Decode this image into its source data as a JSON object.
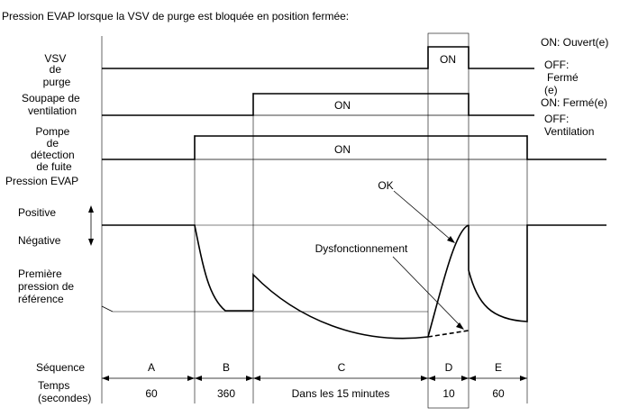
{
  "title": "Pression EVAP lorsque la VSV de purge est bloquée en position fermée:",
  "rows": {
    "vsv": {
      "label": [
        "VSV",
        "de",
        "purge"
      ],
      "on_text": "ON",
      "state_on": "ON: Ouvert(e)",
      "state_off": [
        "OFF:",
        "Fermé",
        "(e)"
      ]
    },
    "vent": {
      "label": [
        "Soupape de",
        "ventilation"
      ],
      "on_text": "ON",
      "state_on": "ON: Fermé(e)",
      "state_off": [
        "OFF:",
        "Ventilation"
      ]
    },
    "pump": {
      "label": [
        "Pompe",
        "de",
        "détection",
        "de fuite"
      ],
      "on_text": "ON"
    },
    "pressure": {
      "label": "Pression EVAP",
      "positive": "Positive",
      "negative": "Négative",
      "reference": [
        "Première",
        "pression de",
        "référence"
      ],
      "ok": "OK",
      "malfunction": "Dysfonctionnement"
    }
  },
  "sequence": {
    "label": "Séquence",
    "time_label": [
      "Temps",
      "(secondes)"
    ],
    "steps": [
      {
        "id": "A",
        "time": "60"
      },
      {
        "id": "B",
        "time": "360"
      },
      {
        "id": "C",
        "time": "Dans les 15 minutes"
      },
      {
        "id": "D",
        "time": "10"
      },
      {
        "id": "E",
        "time": "60"
      }
    ]
  }
}
